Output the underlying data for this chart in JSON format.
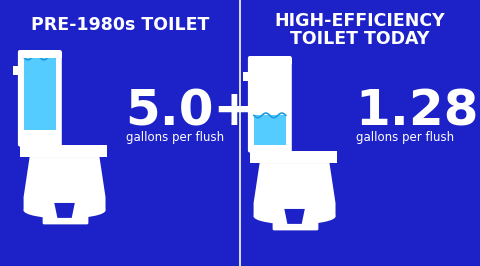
{
  "bg_color": "#1c22c8",
  "white": "#ffffff",
  "light_blue": "#55ccff",
  "dark_blue_bg": "#1c22c8",
  "left_title": "PRE-1980s TOILET",
  "right_title_line1": "HIGH-EFFICIENCY",
  "right_title_line2": "TOILET TODAY",
  "left_value": "5.0+",
  "right_value": "1.28",
  "sub_text": "gallons per flush",
  "figw": 4.8,
  "figh": 2.66,
  "dpi": 100
}
